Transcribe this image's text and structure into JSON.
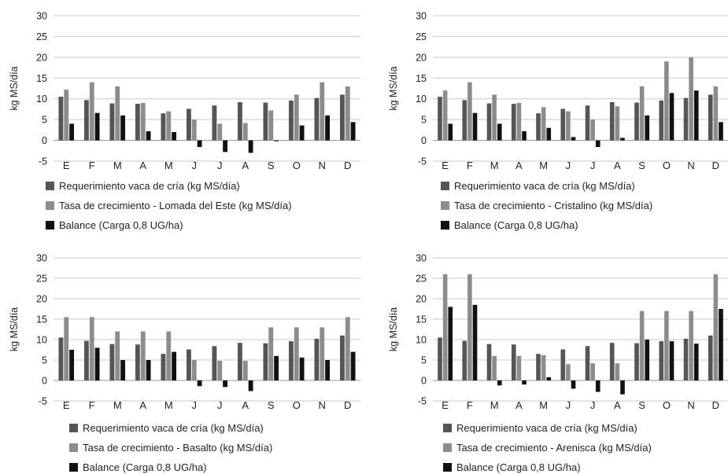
{
  "chart_data": [
    {
      "type": "bar",
      "ylabel": "kg MS/día",
      "ylim": [
        -5,
        30
      ],
      "yticks": [
        -5,
        0,
        5,
        10,
        15,
        20,
        25,
        30
      ],
      "grid": true,
      "legend_position": "bottom",
      "categories": [
        "E",
        "F",
        "M",
        "A",
        "M",
        "J",
        "J",
        "A",
        "S",
        "O",
        "N",
        "D"
      ],
      "series": [
        {
          "name": "Requerimiento vaca de cría (kg MS/día)",
          "color": "#555555",
          "values": [
            10.5,
            9.7,
            8.9,
            8.8,
            6.5,
            7.6,
            8.4,
            9.2,
            9.1,
            9.6,
            10.2,
            11.0
          ]
        },
        {
          "name": "Tasa de crecimiento - Lomada del Este (kg MS/día)",
          "color": "#8c8c8c",
          "values": [
            12.2,
            14.0,
            13.0,
            9.0,
            7.0,
            5.0,
            4.0,
            4.2,
            7.2,
            11.0,
            14.0,
            13.0
          ]
        },
        {
          "name": "Balance (Carga 0,8 UG/ha)",
          "color": "#111111",
          "values": [
            4.0,
            6.6,
            6.0,
            2.2,
            2.0,
            -1.6,
            -2.8,
            -3.0,
            -0.2,
            3.6,
            6.0,
            4.4
          ]
        }
      ]
    },
    {
      "type": "bar",
      "ylabel": "kg MS/día",
      "ylim": [
        -5,
        30
      ],
      "yticks": [
        -5,
        0,
        5,
        10,
        15,
        20,
        25,
        30
      ],
      "grid": true,
      "legend_position": "bottom",
      "categories": [
        "E",
        "F",
        "M",
        "A",
        "M",
        "J",
        "J",
        "A",
        "S",
        "O",
        "N",
        "D"
      ],
      "series": [
        {
          "name": "Requerimiento vaca de cría (kg MS/día)",
          "color": "#555555",
          "values": [
            10.5,
            9.7,
            8.9,
            8.8,
            6.5,
            7.6,
            8.4,
            9.2,
            9.1,
            9.6,
            10.2,
            11.0
          ]
        },
        {
          "name": "Tasa de crecimiento - Cristalino (kg MS/día)",
          "color": "#8c8c8c",
          "values": [
            12.0,
            14.0,
            11.0,
            9.0,
            8.0,
            7.0,
            5.0,
            8.2,
            13.0,
            19.0,
            20.0,
            13.0
          ]
        },
        {
          "name": "Balance (Carga 0,8 UG/ha)",
          "color": "#111111",
          "values": [
            4.0,
            6.6,
            4.0,
            2.2,
            3.0,
            0.8,
            -1.6,
            0.6,
            6.0,
            11.4,
            12.0,
            4.4
          ]
        }
      ]
    },
    {
      "type": "bar",
      "ylabel": "kg MS/día",
      "ylim": [
        -5,
        30
      ],
      "yticks": [
        -5,
        0,
        5,
        10,
        15,
        20,
        25,
        30
      ],
      "grid": true,
      "legend_position": "bottom",
      "categories": [
        "E",
        "F",
        "M",
        "A",
        "M",
        "J",
        "J",
        "A",
        "S",
        "O",
        "N",
        "D"
      ],
      "series": [
        {
          "name": "Requerimiento vaca de cría (kg MS/día)",
          "color": "#555555",
          "values": [
            10.5,
            9.7,
            8.9,
            8.8,
            6.5,
            7.6,
            8.4,
            9.2,
            9.1,
            9.6,
            10.2,
            11.0
          ]
        },
        {
          "name": "Tasa de crecimiento - Basalto (kg MS/día)",
          "color": "#8c8c8c",
          "values": [
            15.5,
            15.5,
            12.0,
            12.0,
            12.0,
            5.0,
            4.8,
            4.8,
            13.0,
            13.0,
            13.0,
            15.5
          ]
        },
        {
          "name": "Balance (Carga 0,8 UG/ha)",
          "color": "#111111",
          "values": [
            7.5,
            8.0,
            5.0,
            5.0,
            7.0,
            -1.4,
            -1.6,
            -2.6,
            6.0,
            5.6,
            5.0,
            7.0
          ]
        }
      ]
    },
    {
      "type": "bar",
      "ylabel": "kg MS/día",
      "ylim": [
        -5,
        30
      ],
      "yticks": [
        -5,
        0,
        5,
        10,
        15,
        20,
        25,
        30
      ],
      "grid": true,
      "legend_position": "bottom",
      "categories": [
        "E",
        "F",
        "M",
        "A",
        "M",
        "J",
        "J",
        "A",
        "S",
        "O",
        "N",
        "D"
      ],
      "series": [
        {
          "name": "Requerimiento vaca de cría (kg MS/día)",
          "color": "#555555",
          "values": [
            10.5,
            9.7,
            8.9,
            8.8,
            6.5,
            7.6,
            8.4,
            9.2,
            9.1,
            9.6,
            10.2,
            11.0
          ]
        },
        {
          "name": "Tasa de crecimiento - Arenisca (kg MS/día)",
          "color": "#8c8c8c",
          "values": [
            26.0,
            26.0,
            6.0,
            6.0,
            6.2,
            4.0,
            4.2,
            4.2,
            17.0,
            17.0,
            17.0,
            26.0
          ]
        },
        {
          "name": "Balance (Carga 0,8 UG/ha)",
          "color": "#111111",
          "values": [
            18.0,
            18.5,
            -1.2,
            -1.0,
            0.8,
            -2.0,
            -2.8,
            -3.4,
            10.0,
            9.6,
            9.0,
            17.5
          ]
        }
      ]
    }
  ]
}
